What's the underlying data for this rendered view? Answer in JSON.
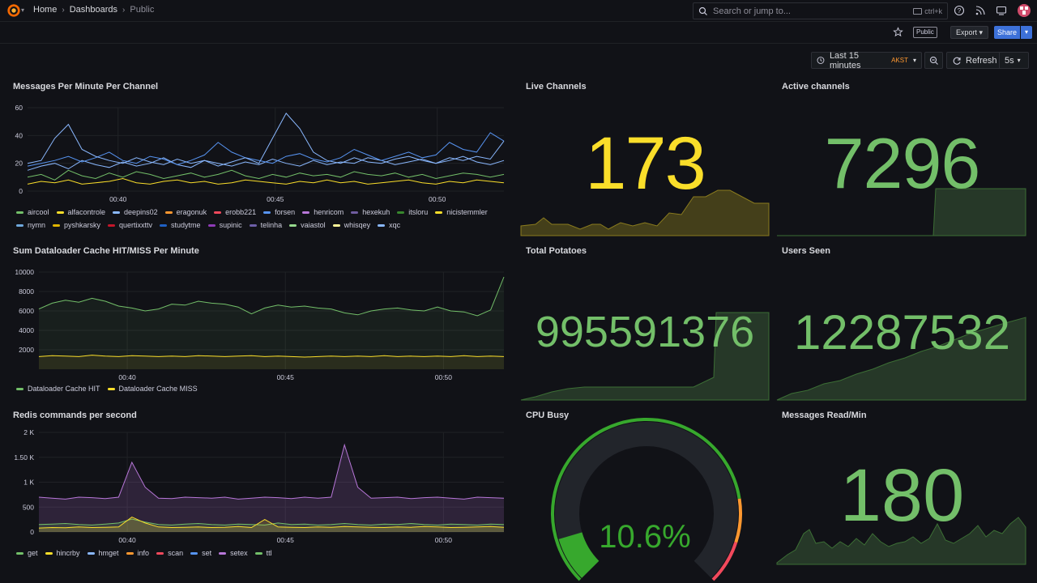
{
  "nav": {
    "breadcrumb": [
      "Home",
      "Dashboards",
      "Public"
    ],
    "search_placeholder": "Search or jump to...",
    "search_shortcut": "ctrl+k"
  },
  "toolbar": {
    "public_badge": "Public",
    "export_label": "Export",
    "share_label": "Share"
  },
  "time": {
    "range_label": "Last 15 minutes",
    "timezone": "AKST",
    "refresh_label": "Refresh",
    "interval": "5s"
  },
  "colors": {
    "green": "#73bf69",
    "yellow": "#fade2a",
    "accent": "#3d71d9"
  },
  "panels": {
    "messages": {
      "title": "Messages Per Minute Per Channel",
      "legend": [
        {
          "name": "aircool",
          "color": "#73bf69"
        },
        {
          "name": "alfacontrole",
          "color": "#fade2a"
        },
        {
          "name": "deepins02",
          "color": "#8ab8ff"
        },
        {
          "name": "eragonuk",
          "color": "#ff9830"
        },
        {
          "name": "erobb221",
          "color": "#f2495c"
        },
        {
          "name": "forsen",
          "color": "#5794f2"
        },
        {
          "name": "henricom",
          "color": "#b877d9"
        },
        {
          "name": "hexekuh",
          "color": "#705da0"
        },
        {
          "name": "itsloru",
          "color": "#37872d"
        },
        {
          "name": "nicistemmler",
          "color": "#fade2a"
        },
        {
          "name": "nymn",
          "color": "#6fa8dc"
        },
        {
          "name": "pyshkarsky",
          "color": "#e0b400"
        },
        {
          "name": "quertixxttv",
          "color": "#c4162a"
        },
        {
          "name": "studytme",
          "color": "#1f60c4"
        },
        {
          "name": "supinic",
          "color": "#8f3bb8"
        },
        {
          "name": "telinha",
          "color": "#6d5fa8"
        },
        {
          "name": "vaiastol",
          "color": "#96d98d"
        },
        {
          "name": "whisqey",
          "color": "#fff899"
        },
        {
          "name": "xqc",
          "color": "#8ab8ff"
        }
      ]
    },
    "live_channels": {
      "title": "Live Channels",
      "value": "173"
    },
    "active_channels": {
      "title": "Active channels",
      "value": "7296"
    },
    "dataloader": {
      "title": "Sum Dataloader Cache HIT/MISS Per Minute",
      "legend": [
        {
          "name": "Dataloader Cache HIT",
          "color": "#73bf69"
        },
        {
          "name": "Dataloader Cache MISS",
          "color": "#fade2a"
        }
      ]
    },
    "total_potatoes": {
      "title": "Total Potatoes",
      "value": "995591376"
    },
    "users_seen": {
      "title": "Users Seen",
      "value": "12287532"
    },
    "redis": {
      "title": "Redis commands per second",
      "legend": [
        {
          "name": "get",
          "color": "#73bf69"
        },
        {
          "name": "hincrby",
          "color": "#fade2a"
        },
        {
          "name": "hmget",
          "color": "#8ab8ff"
        },
        {
          "name": "info",
          "color": "#ff9830"
        },
        {
          "name": "scan",
          "color": "#f2495c"
        },
        {
          "name": "set",
          "color": "#5794f2"
        },
        {
          "name": "setex",
          "color": "#b877d9"
        },
        {
          "name": "ttl",
          "color": "#73bf69"
        }
      ]
    },
    "cpu_busy": {
      "title": "CPU Busy",
      "value": "10.6%",
      "percent": 10.6
    },
    "messages_read": {
      "title": "Messages Read/Min",
      "value": "180"
    }
  },
  "chart_data": [
    {
      "type": "line",
      "title": "Messages Per Minute Per Channel",
      "x_ticks": [
        "00:40",
        "00:45",
        "00:50"
      ],
      "y_ticks": [
        "0",
        "20",
        "40",
        "60"
      ],
      "ylim": [
        0,
        60
      ],
      "series": [
        {
          "name": "aircool",
          "values": [
            10,
            12,
            8,
            15,
            11,
            9,
            13,
            10,
            14,
            12,
            9,
            11,
            13,
            10,
            12,
            15,
            11,
            9,
            12,
            10,
            13,
            11,
            12,
            10,
            14,
            12,
            11,
            13,
            10,
            12,
            9,
            11,
            13,
            12,
            10,
            12
          ]
        },
        {
          "name": "alfacontrole",
          "values": [
            5,
            7,
            6,
            8,
            5,
            6,
            7,
            9,
            6,
            5,
            7,
            8,
            6,
            7,
            5,
            6,
            8,
            7,
            6,
            5,
            7,
            6,
            8,
            6,
            7,
            5,
            6,
            7,
            8,
            6,
            5,
            7,
            6,
            8,
            7,
            6
          ]
        },
        {
          "name": "deepins02",
          "values": [
            15,
            18,
            20,
            16,
            22,
            19,
            17,
            21,
            18,
            20,
            24,
            19,
            17,
            22,
            20,
            18,
            21,
            19,
            23,
            20,
            18,
            22,
            19,
            21,
            20,
            24,
            22,
            19,
            21,
            23,
            20,
            22,
            25,
            21,
            19,
            22
          ]
        },
        {
          "name": "forsen",
          "values": [
            18,
            20,
            22,
            25,
            21,
            24,
            28,
            22,
            20,
            25,
            23,
            19,
            22,
            26,
            35,
            28,
            24,
            22,
            20,
            25,
            27,
            23,
            21,
            24,
            30,
            26,
            22,
            25,
            28,
            24,
            26,
            35,
            30,
            28,
            42,
            36
          ]
        },
        {
          "name": "xqc",
          "values": [
            20,
            22,
            38,
            48,
            30,
            25,
            22,
            20,
            24,
            21,
            19,
            23,
            20,
            22,
            18,
            21,
            24,
            20,
            38,
            56,
            45,
            28,
            22,
            20,
            24,
            21,
            20,
            23,
            25,
            22,
            20,
            24,
            22,
            25,
            23,
            36
          ]
        }
      ]
    },
    {
      "type": "line",
      "title": "Sum Dataloader Cache HIT/MISS Per Minute",
      "x_ticks": [
        "00:40",
        "00:45",
        "00:50"
      ],
      "y_ticks": [
        "2000",
        "4000",
        "6000",
        "8000",
        "10000"
      ],
      "ylim": [
        0,
        10000
      ],
      "series": [
        {
          "name": "Dataloader Cache HIT",
          "values": [
            6200,
            6800,
            7100,
            6900,
            7300,
            7000,
            6500,
            6300,
            6000,
            6200,
            6700,
            6600,
            7000,
            6800,
            6700,
            6400,
            5700,
            6300,
            6600,
            6400,
            6500,
            6300,
            6200,
            5800,
            5600,
            6000,
            6200,
            6300,
            6100,
            6000,
            6400,
            6000,
            5900,
            5500,
            6100,
            9500
          ]
        },
        {
          "name": "Dataloader Cache MISS",
          "values": [
            1300,
            1400,
            1350,
            1300,
            1450,
            1350,
            1300,
            1400,
            1350,
            1300,
            1350,
            1300,
            1400,
            1350,
            1300,
            1350,
            1400,
            1300,
            1350,
            1300,
            1250,
            1300,
            1350,
            1300,
            1350,
            1300,
            1400,
            1300,
            1350,
            1300,
            1350,
            1300,
            1400,
            1300,
            1350,
            1300
          ]
        }
      ]
    },
    {
      "type": "area",
      "title": "Redis commands per second",
      "x_ticks": [
        "00:40",
        "00:45",
        "00:50"
      ],
      "y_ticks": [
        "0",
        "500",
        "1 K",
        "1.50 K",
        "2 K"
      ],
      "ylim": [
        0,
        2000
      ],
      "series": [
        {
          "name": "setex",
          "values": [
            700,
            680,
            660,
            700,
            690,
            670,
            700,
            1400,
            900,
            680,
            670,
            700,
            690,
            680,
            700,
            660,
            680,
            700,
            690,
            670,
            700,
            680,
            700,
            1750,
            900,
            680,
            690,
            700,
            670,
            690,
            700,
            680,
            660,
            700,
            690,
            680
          ]
        },
        {
          "name": "get",
          "values": [
            150,
            160,
            170,
            150,
            140,
            160,
            180,
            260,
            200,
            150,
            140,
            160,
            170,
            150,
            140,
            160,
            150,
            140,
            180,
            150,
            160,
            140,
            150,
            170,
            150,
            140,
            160,
            150,
            170,
            150,
            140,
            160,
            150,
            140,
            160,
            150
          ]
        },
        {
          "name": "hincrby",
          "values": [
            80,
            90,
            85,
            100,
            90,
            95,
            100,
            300,
            180,
            100,
            90,
            95,
            100,
            90,
            95,
            110,
            90,
            250,
            100,
            95,
            90,
            100,
            95,
            110,
            100,
            95,
            90,
            100,
            95,
            110,
            100,
            90,
            95,
            100,
            110,
            95
          ]
        }
      ]
    },
    {
      "type": "gauge",
      "title": "CPU Busy",
      "value": 10.6,
      "ylim": [
        0,
        100
      ]
    }
  ]
}
